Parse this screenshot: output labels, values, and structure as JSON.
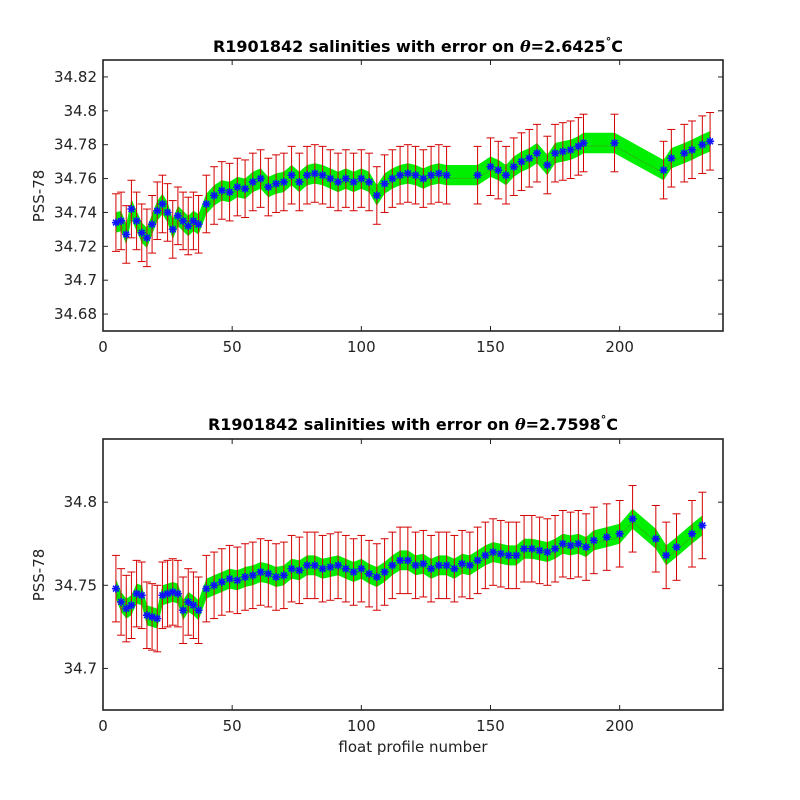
{
  "colors": {
    "band": "#00ee00",
    "band_inner": "#3aa018",
    "errorbar": "#d40000",
    "marker": "#1010ff",
    "axis": "#222222"
  },
  "marker_icon": "asterisk",
  "xlabel": "float profile number",
  "chart_data": [
    {
      "type": "scatter",
      "title_prefix": "R1901842 salinities with error on ",
      "theta_symbol": "θ",
      "theta_value": "=2.6425",
      "degree": "°",
      "unit": "C",
      "ylabel": "PSS-78",
      "xlim": [
        0,
        240
      ],
      "ylim": [
        34.67,
        34.83
      ],
      "xticks": [
        0,
        50,
        100,
        150,
        200
      ],
      "yticks": [
        34.68,
        34.7,
        34.72,
        34.74,
        34.76,
        34.78,
        34.8,
        34.82
      ],
      "ytick_labels": [
        "34.68",
        "34.7",
        "34.72",
        "34.74",
        "34.76",
        "34.78",
        "34.8",
        "34.82"
      ],
      "band_halfwidth": 0.006,
      "error_halfwidth": 0.017,
      "x": [
        5,
        7,
        9,
        11,
        13,
        15,
        17,
        19,
        21,
        23,
        25,
        27,
        29,
        31,
        33,
        35,
        37,
        40,
        43,
        46,
        49,
        52,
        55,
        58,
        61,
        64,
        67,
        70,
        73,
        76,
        79,
        82,
        85,
        88,
        91,
        94,
        97,
        100,
        103,
        106,
        109,
        112,
        115,
        118,
        121,
        124,
        127,
        130,
        133,
        145,
        150,
        153,
        156,
        159,
        162,
        165,
        168,
        172,
        175,
        178,
        181,
        184,
        186,
        198,
        217,
        220,
        225,
        228,
        232,
        235
      ],
      "y": [
        34.734,
        34.735,
        34.727,
        34.742,
        34.735,
        34.728,
        34.725,
        34.733,
        34.741,
        34.745,
        34.74,
        34.73,
        34.738,
        34.735,
        34.732,
        34.735,
        34.733,
        34.745,
        34.75,
        34.753,
        34.752,
        34.755,
        34.754,
        34.758,
        34.76,
        34.755,
        34.757,
        34.758,
        34.762,
        34.758,
        34.762,
        34.763,
        34.762,
        34.76,
        34.758,
        34.76,
        34.758,
        34.76,
        34.758,
        34.75,
        34.757,
        34.76,
        34.762,
        34.763,
        34.762,
        34.76,
        34.762,
        34.763,
        34.762,
        34.762,
        34.767,
        34.765,
        34.762,
        34.767,
        34.77,
        34.772,
        34.775,
        34.768,
        34.775,
        34.776,
        34.777,
        34.779,
        34.781,
        34.781,
        34.765,
        34.772,
        34.775,
        34.777,
        34.78,
        34.782
      ]
    },
    {
      "type": "scatter",
      "title_prefix": "R1901842 salinities with error on ",
      "theta_symbol": "θ",
      "theta_value": "=2.7598",
      "degree": "°",
      "unit": "C",
      "ylabel": "PSS-78",
      "xlim": [
        0,
        240
      ],
      "ylim": [
        34.675,
        34.838
      ],
      "xticks": [
        0,
        50,
        100,
        150,
        200
      ],
      "yticks": [
        34.7,
        34.75,
        34.8
      ],
      "ytick_labels": [
        "34.7",
        "34.75",
        "34.8"
      ],
      "band_halfwidth": 0.006,
      "error_halfwidth": 0.02,
      "x": [
        5,
        7,
        9,
        11,
        13,
        15,
        17,
        19,
        21,
        23,
        25,
        27,
        29,
        31,
        33,
        35,
        37,
        40,
        43,
        46,
        49,
        52,
        55,
        58,
        61,
        64,
        67,
        70,
        73,
        76,
        79,
        82,
        85,
        88,
        91,
        94,
        97,
        100,
        103,
        106,
        109,
        112,
        115,
        118,
        121,
        124,
        127,
        130,
        133,
        136,
        139,
        142,
        145,
        148,
        151,
        154,
        157,
        160,
        163,
        166,
        169,
        172,
        175,
        178,
        181,
        184,
        187,
        190,
        195,
        200,
        205,
        214,
        218,
        222,
        228,
        232
      ],
      "y": [
        34.748,
        34.74,
        34.736,
        34.738,
        34.745,
        34.744,
        34.732,
        34.731,
        34.73,
        34.744,
        34.745,
        34.746,
        34.745,
        34.735,
        34.74,
        34.738,
        34.735,
        34.748,
        34.75,
        34.752,
        34.754,
        34.753,
        34.755,
        34.756,
        34.758,
        34.757,
        34.755,
        34.756,
        34.76,
        34.759,
        34.762,
        34.762,
        34.76,
        34.761,
        34.762,
        34.76,
        34.758,
        34.76,
        34.757,
        34.755,
        34.758,
        34.762,
        34.765,
        34.765,
        34.762,
        34.763,
        34.76,
        34.762,
        34.762,
        34.76,
        34.763,
        34.762,
        34.765,
        34.768,
        34.77,
        34.769,
        34.768,
        34.768,
        34.772,
        34.772,
        34.771,
        34.77,
        34.772,
        34.775,
        34.774,
        34.775,
        34.773,
        34.777,
        34.779,
        34.781,
        34.79,
        34.778,
        34.768,
        34.773,
        34.781,
        34.786
      ]
    }
  ]
}
